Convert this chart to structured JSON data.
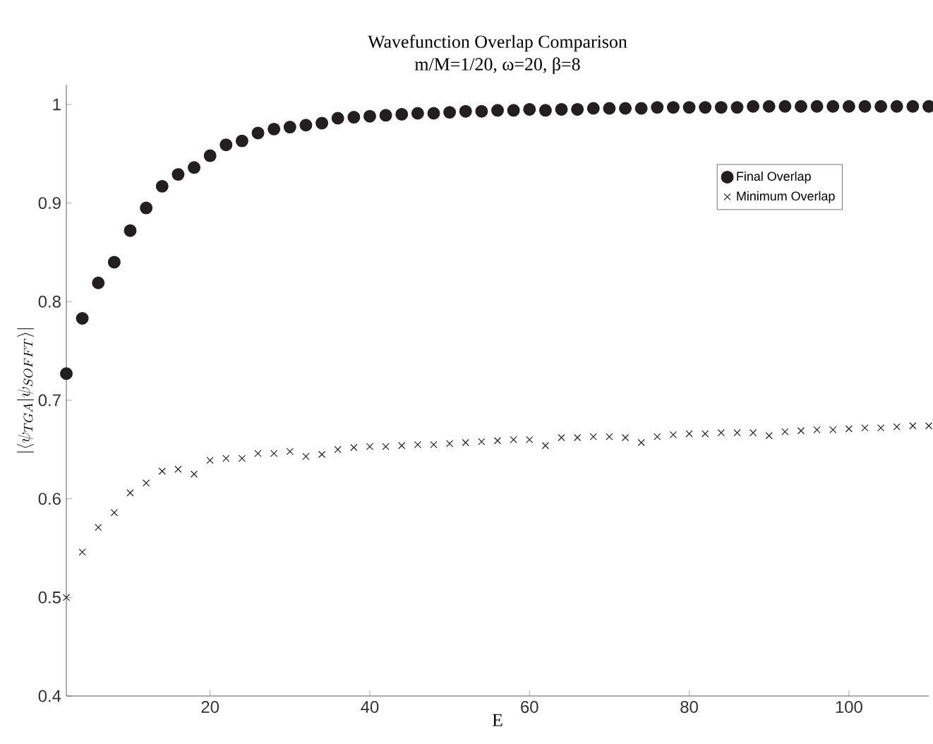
{
  "chart_data": {
    "type": "scatter",
    "title": "Wavefunction Overlap Comparison",
    "subtitle": "m/M=1/20, ω=20, β=8",
    "xlabel": "E",
    "ylabel": "|\\langle\\psi_{TGA}|\\psi_{SOFFT}\\rangle|",
    "x": [
      2,
      4,
      6,
      8,
      10,
      12,
      14,
      16,
      18,
      20,
      22,
      24,
      26,
      28,
      30,
      32,
      34,
      36,
      38,
      40,
      42,
      44,
      46,
      48,
      50,
      52,
      54,
      56,
      58,
      60,
      62,
      64,
      66,
      68,
      70,
      72,
      74,
      76,
      78,
      80,
      82,
      84,
      86,
      88,
      90,
      92,
      94,
      96,
      98,
      100,
      102,
      104,
      106,
      108,
      110
    ],
    "series": [
      {
        "name": "Final Overlap",
        "color": "#231f20",
        "marker": "circle",
        "values": [
          0.727,
          0.783,
          0.819,
          0.84,
          0.872,
          0.895,
          0.917,
          0.929,
          0.936,
          0.948,
          0.959,
          0.963,
          0.971,
          0.975,
          0.977,
          0.979,
          0.981,
          0.986,
          0.987,
          0.988,
          0.989,
          0.99,
          0.991,
          0.991,
          0.992,
          0.993,
          0.993,
          0.994,
          0.994,
          0.995,
          0.994,
          0.995,
          0.995,
          0.996,
          0.996,
          0.996,
          0.996,
          0.997,
          0.997,
          0.997,
          0.997,
          0.997,
          0.997,
          0.998,
          0.998,
          0.998,
          0.998,
          0.998,
          0.998,
          0.998,
          0.998,
          0.998,
          0.998,
          0.998,
          0.998
        ]
      },
      {
        "name": "Minimum Overlap",
        "color": "#231f20",
        "marker": "cross",
        "values": [
          0.5,
          0.546,
          0.571,
          0.586,
          0.606,
          0.616,
          0.628,
          0.63,
          0.625,
          0.639,
          0.641,
          0.641,
          0.646,
          0.646,
          0.648,
          0.643,
          0.645,
          0.65,
          0.652,
          0.653,
          0.653,
          0.654,
          0.655,
          0.655,
          0.656,
          0.657,
          0.658,
          0.659,
          0.66,
          0.66,
          0.654,
          0.662,
          0.662,
          0.663,
          0.663,
          0.662,
          0.657,
          0.663,
          0.665,
          0.666,
          0.666,
          0.667,
          0.667,
          0.667,
          0.664,
          0.668,
          0.669,
          0.67,
          0.67,
          0.671,
          0.672,
          0.672,
          0.673,
          0.674,
          0.674
        ]
      }
    ],
    "xlim": [
      2,
      110
    ],
    "ylim": [
      0.4,
      1.02
    ],
    "xticks": [
      20,
      40,
      60,
      80,
      100
    ],
    "yticks": [
      0.4,
      0.5,
      0.6,
      0.7,
      0.8,
      0.9,
      1
    ],
    "grid": false,
    "legend": "top right"
  }
}
